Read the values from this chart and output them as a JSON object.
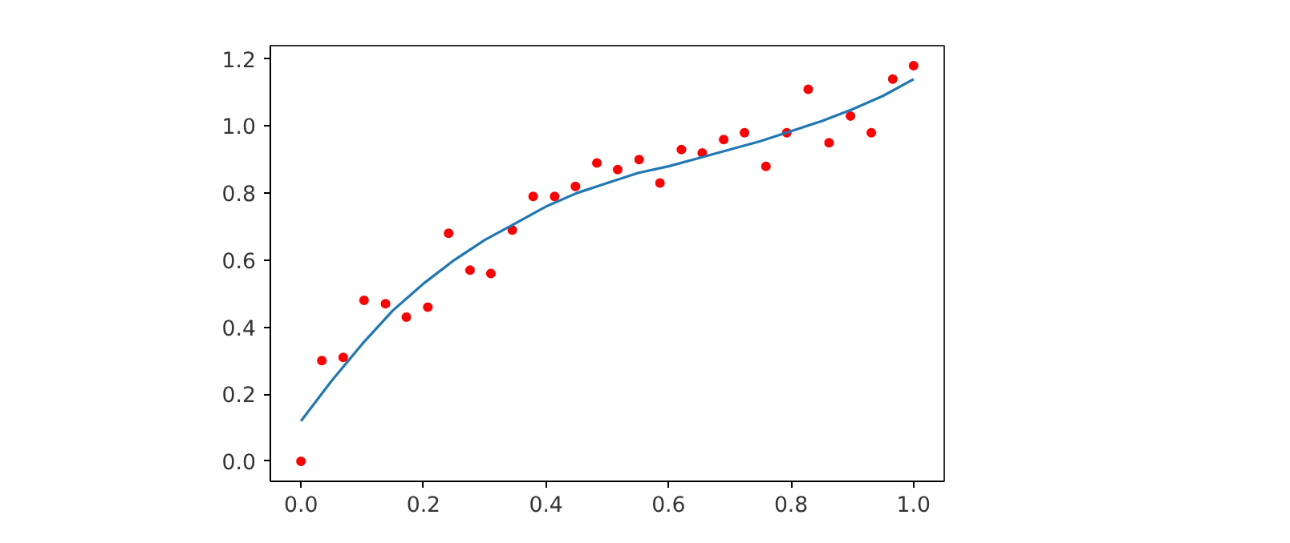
{
  "chart_data": {
    "type": "scatter",
    "xlim": [
      -0.05,
      1.05
    ],
    "ylim": [
      -0.06,
      1.24
    ],
    "xticks": [
      {
        "value": 0,
        "label": "0.0"
      },
      0.2,
      0.4,
      0.6,
      0.8,
      {
        "value": 1,
        "label": "1.0"
      }
    ],
    "yticks": [
      {
        "value": 0,
        "label": "0.0"
      },
      0.2,
      0.4,
      0.6,
      0.8,
      {
        "value": 1,
        "label": "1.0"
      },
      1.2
    ],
    "grid": false,
    "series": [
      {
        "color": "#ff0000",
        "marker": "circle",
        "x": [
          0.0,
          0.034,
          0.069,
          0.103,
          0.138,
          0.172,
          0.207,
          0.241,
          0.276,
          0.31,
          0.345,
          0.379,
          0.414,
          0.448,
          0.483,
          0.517,
          0.552,
          0.586,
          0.621,
          0.655,
          0.69,
          0.724,
          0.759,
          0.793,
          0.828,
          0.862,
          0.897,
          0.931,
          0.966,
          1.0
        ],
        "values": [
          0.0,
          0.3,
          0.31,
          0.48,
          0.47,
          0.43,
          0.46,
          0.68,
          0.57,
          0.56,
          0.69,
          0.79,
          0.79,
          0.82,
          0.89,
          0.87,
          0.9,
          0.83,
          0.93,
          0.92,
          0.96,
          0.98,
          0.88,
          0.98,
          1.11,
          0.95,
          1.03,
          0.98,
          1.14,
          1.18
        ]
      },
      {
        "type": "line",
        "color": "#1f77b4",
        "line_style": "solid",
        "x": [
          0.0,
          0.05,
          0.1,
          0.15,
          0.2,
          0.25,
          0.3,
          0.35,
          0.4,
          0.45,
          0.5,
          0.55,
          0.6,
          0.65,
          0.7,
          0.75,
          0.8,
          0.85,
          0.9,
          0.95,
          1.0
        ],
        "values": [
          0.12,
          0.24,
          0.35,
          0.45,
          0.53,
          0.6,
          0.66,
          0.71,
          0.76,
          0.8,
          0.83,
          0.86,
          0.88,
          0.905,
          0.93,
          0.955,
          0.985,
          1.015,
          1.05,
          1.09,
          1.14
        ]
      }
    ]
  }
}
